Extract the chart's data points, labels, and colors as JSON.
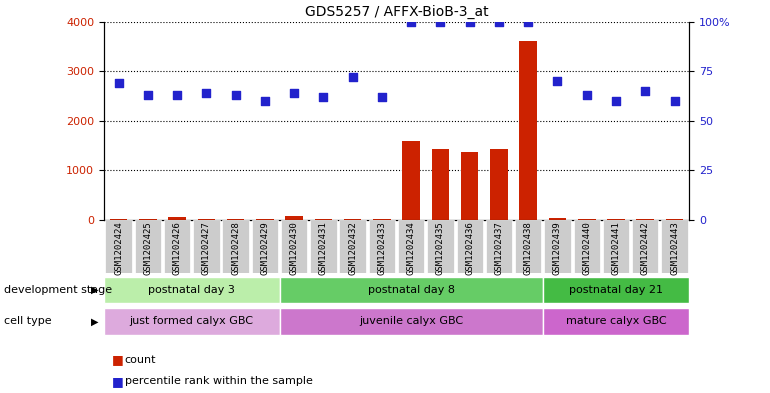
{
  "title": "GDS5257 / AFFX-BioB-3_at",
  "samples": [
    "GSM1202424",
    "GSM1202425",
    "GSM1202426",
    "GSM1202427",
    "GSM1202428",
    "GSM1202429",
    "GSM1202430",
    "GSM1202431",
    "GSM1202432",
    "GSM1202433",
    "GSM1202434",
    "GSM1202435",
    "GSM1202436",
    "GSM1202437",
    "GSM1202438",
    "GSM1202439",
    "GSM1202440",
    "GSM1202441",
    "GSM1202442",
    "GSM1202443"
  ],
  "counts": [
    30,
    20,
    60,
    20,
    30,
    30,
    80,
    15,
    15,
    15,
    1600,
    1430,
    1380,
    1430,
    3600,
    50,
    20,
    20,
    20,
    20
  ],
  "percentiles": [
    69,
    63,
    63,
    64,
    63,
    60,
    64,
    62,
    72,
    62,
    100,
    100,
    100,
    100,
    100,
    70,
    63,
    60,
    65,
    60
  ],
  "dev_stage_groups": [
    {
      "label": "postnatal day 3",
      "start": 0,
      "end": 6,
      "color": "#bbeeaa"
    },
    {
      "label": "postnatal day 8",
      "start": 6,
      "end": 15,
      "color": "#66cc66"
    },
    {
      "label": "postnatal day 21",
      "start": 15,
      "end": 20,
      "color": "#44bb44"
    }
  ],
  "cell_type_groups": [
    {
      "label": "just formed calyx GBC",
      "start": 0,
      "end": 6,
      "color": "#ddaadd"
    },
    {
      "label": "juvenile calyx GBC",
      "start": 6,
      "end": 15,
      "color": "#cc77cc"
    },
    {
      "label": "mature calyx GBC",
      "start": 15,
      "end": 20,
      "color": "#cc66cc"
    }
  ],
  "ylim_left": [
    0,
    4000
  ],
  "ylim_right": [
    0,
    100
  ],
  "yticks_left": [
    0,
    1000,
    2000,
    3000,
    4000
  ],
  "yticks_right": [
    0,
    25,
    50,
    75,
    100
  ],
  "ytick_labels_right": [
    "0",
    "25",
    "50",
    "75",
    "100%"
  ],
  "bar_color": "#cc2200",
  "dot_color": "#2222cc",
  "dev_stage_label": "development stage",
  "cell_type_label": "cell type",
  "legend_count_label": "count",
  "legend_pct_label": "percentile rank within the sample",
  "xticklabel_bg_color": "#cccccc"
}
